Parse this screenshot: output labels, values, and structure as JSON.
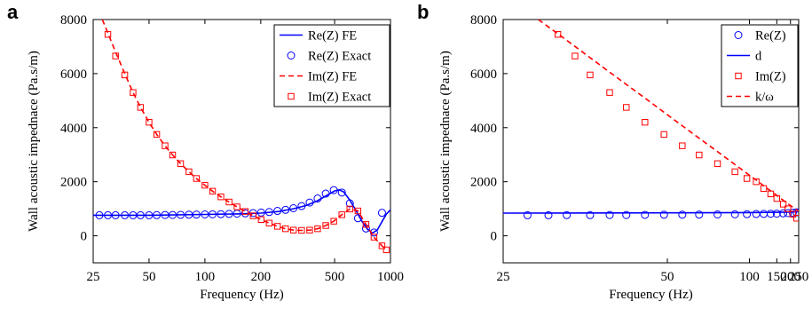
{
  "chart_data": [
    {
      "type": "line",
      "panel_label": "a",
      "xlabel": "Frequency (Hz)",
      "ylabel": "Wall acoustic impednace (Pa.s/m)",
      "xscale": "log",
      "xlim": [
        25,
        1000
      ],
      "ylim": [
        -1000,
        8000
      ],
      "xticks": [
        25,
        50,
        100,
        200,
        500,
        1000
      ],
      "yticks": [
        0,
        2000,
        4000,
        6000,
        8000
      ],
      "grid": false,
      "legend_position": "top-right",
      "colors": {
        "re": "#0000ff",
        "im": "#ff0000"
      },
      "series": [
        {
          "name": "Re(Z) FE",
          "style": "solid",
          "color": "#0000ff",
          "x": [
            25,
            50,
            100,
            150,
            200,
            250,
            300,
            350,
            400,
            450,
            500,
            530,
            560,
            600,
            650,
            700,
            750,
            800,
            850,
            900,
            950,
            1000
          ],
          "y": [
            760,
            760,
            790,
            810,
            840,
            900,
            1000,
            1120,
            1280,
            1480,
            1660,
            1700,
            1620,
            1350,
            950,
            550,
            250,
            100,
            220,
            520,
            800,
            960
          ]
        },
        {
          "name": "Re(Z) Exact",
          "style": "circle",
          "color": "#0000ff",
          "x": [
            27,
            30,
            33,
            37,
            41,
            45,
            50,
            55,
            61,
            67,
            74,
            82,
            90,
            100,
            110,
            122,
            135,
            149,
            165,
            182,
            201,
            222,
            246,
            272,
            300,
            332,
            367,
            405,
            448,
            495,
            547,
            604,
            668,
            738,
            815,
            900
          ],
          "y": [
            760,
            760,
            760,
            760,
            760,
            760,
            760,
            765,
            770,
            770,
            775,
            780,
            785,
            790,
            795,
            800,
            810,
            820,
            830,
            840,
            860,
            880,
            920,
            960,
            1020,
            1100,
            1230,
            1380,
            1560,
            1690,
            1600,
            1200,
            650,
            270,
            120,
            850
          ]
        },
        {
          "name": "Im(Z) FE",
          "style": "dashed",
          "color": "#ff0000",
          "x": [
            28,
            30,
            33,
            37,
            41,
            45,
            50,
            55,
            61,
            67,
            74,
            82,
            90,
            100,
            110,
            122,
            135,
            149,
            165,
            182,
            201,
            222,
            246,
            272,
            300,
            332,
            367,
            405,
            448,
            495,
            547,
            604,
            668,
            738,
            815,
            900,
            950
          ],
          "y": [
            8000,
            7500,
            6800,
            6000,
            5300,
            4750,
            4200,
            3750,
            3330,
            2990,
            2670,
            2370,
            2120,
            1870,
            1650,
            1440,
            1250,
            1070,
            900,
            740,
            600,
            470,
            350,
            260,
            210,
            200,
            210,
            260,
            380,
            540,
            780,
            990,
            920,
            420,
            -50,
            -370,
            -520
          ]
        },
        {
          "name": "Im(Z) Exact",
          "style": "square",
          "color": "#ff0000",
          "x": [
            30,
            33,
            37,
            41,
            45,
            50,
            55,
            61,
            67,
            74,
            82,
            90,
            100,
            110,
            122,
            135,
            149,
            165,
            182,
            201,
            222,
            246,
            272,
            300,
            332,
            367,
            405,
            448,
            495,
            547,
            604,
            668,
            738,
            815,
            900,
            950
          ],
          "y": [
            7450,
            6650,
            5950,
            5300,
            4750,
            4200,
            3750,
            3330,
            2990,
            2670,
            2370,
            2120,
            1870,
            1650,
            1440,
            1250,
            1070,
            900,
            740,
            600,
            470,
            350,
            260,
            210,
            200,
            210,
            260,
            380,
            540,
            780,
            990,
            920,
            420,
            -50,
            -370,
            -520
          ]
        }
      ]
    },
    {
      "type": "line",
      "panel_label": "b",
      "xlabel": "Frequency (Hz)",
      "ylabel": "Wall acoustic impednace (Pa.s/m)",
      "xscale": "reciprocal",
      "xlim": [
        25,
        250
      ],
      "ylim": [
        -1000,
        8000
      ],
      "xticks": [
        25,
        50,
        100,
        150,
        200,
        250
      ],
      "yticks": [
        0,
        2000,
        4000,
        6000,
        8000
      ],
      "grid": false,
      "legend_position": "top-right",
      "series": [
        {
          "name": "Re(Z)",
          "style": "circle",
          "color": "#0000ff",
          "x": [
            27,
            29,
            31,
            34,
            37,
            40,
            44,
            49,
            55,
            62,
            72,
            85,
            97,
            109,
            121,
            135,
            150,
            170,
            188,
            212,
            235
          ],
          "y": [
            760,
            760,
            765,
            765,
            770,
            770,
            775,
            780,
            780,
            785,
            790,
            795,
            800,
            805,
            810,
            815,
            820,
            830,
            840,
            850,
            870
          ]
        },
        {
          "name": "d",
          "style": "solid",
          "color": "#0000ff",
          "x": [
            25,
            50,
            100,
            150,
            200,
            250
          ],
          "y": [
            840,
            850,
            860,
            870,
            880,
            890
          ]
        },
        {
          "name": "Im(Z)",
          "style": "square",
          "color": "#ff0000",
          "x": [
            30,
            32,
            34,
            37,
            40,
            44,
            49,
            55,
            62,
            72,
            85,
            97,
            109,
            121,
            135,
            150,
            170,
            188,
            212,
            235
          ],
          "y": [
            7450,
            6650,
            5950,
            5300,
            4750,
            4200,
            3750,
            3330,
            2990,
            2670,
            2370,
            2120,
            2000,
            1750,
            1550,
            1380,
            1170,
            1000,
            800,
            650
          ]
        },
        {
          "name": "k/ω",
          "style": "dashed",
          "color": "#ff0000",
          "x": [
            28,
            30,
            33,
            36,
            40,
            45,
            50,
            55,
            62,
            70,
            80,
            90,
            100,
            110,
            125,
            140,
            160,
            180,
            200,
            225,
            250
          ],
          "y": [
            8000,
            7470,
            6790,
            6220,
            5600,
            4980,
            4480,
            4070,
            3610,
            3200,
            2800,
            2490,
            2240,
            2040,
            1790,
            1600,
            1400,
            1240,
            1120,
            1000,
            900
          ]
        }
      ]
    }
  ]
}
